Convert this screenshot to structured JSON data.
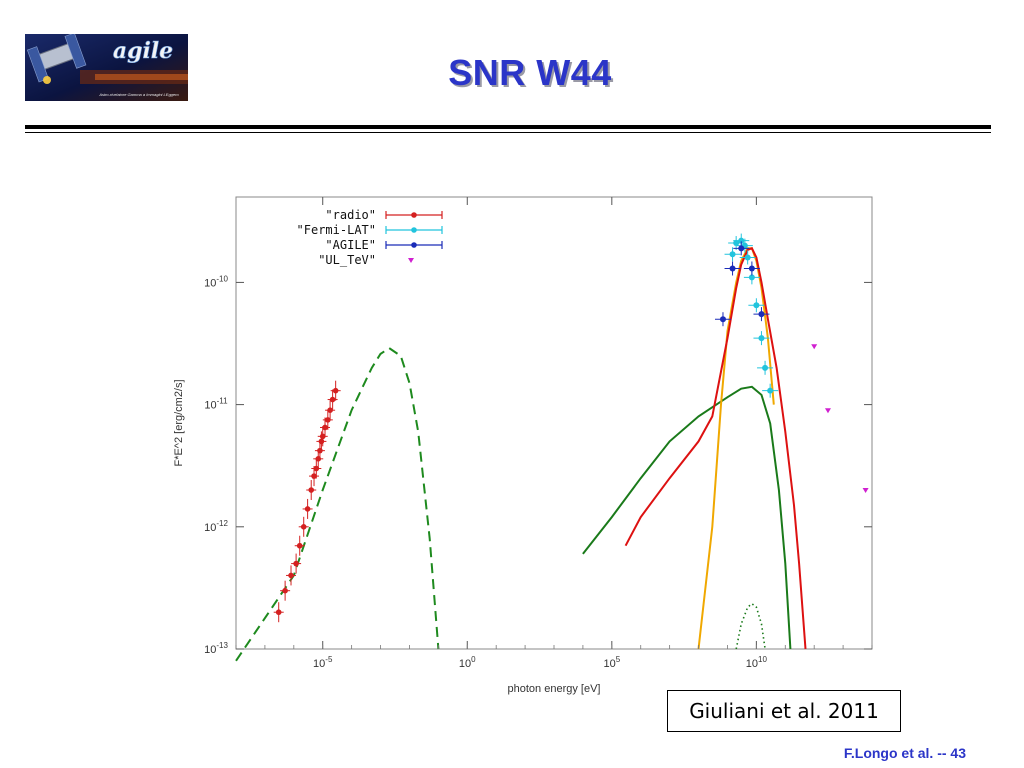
{
  "slide": {
    "title": "SNR W44",
    "footer": "F.Longo et al. -- 43",
    "citation": "Giuliani et al. 2011"
  },
  "logo": {
    "text": "agile",
    "subtitle": "Astro-rivelatore Gamma a Immagini LEggero"
  },
  "colors": {
    "title": "#2b35c8",
    "radio": "#d42020",
    "fermi": "#22c4dd",
    "agile": "#1a2cb8",
    "ul_tev": "#d020d0",
    "fit_total": "#dd1111",
    "fit_pion": "#f0a800",
    "fit_ic_green": "#1a7a1a",
    "synchrotron": "#1e8a1e"
  },
  "chart_data": {
    "type": "scatter",
    "xlabel": "photon energy [eV]",
    "ylabel": "F*E^2 [erg/cm2/s]",
    "x_scale": "log",
    "y_scale": "log",
    "xlim": [
      1e-08,
      100000000000000.0
    ],
    "ylim": [
      1e-13,
      5e-10
    ],
    "x_tick_values": [
      1e-05,
      1.0,
      100000.0,
      10000000000.0
    ],
    "x_tick_labels": [
      "10",
      "10",
      "10",
      "10"
    ],
    "x_tick_exponents": [
      "-5",
      "0",
      "5",
      "10"
    ],
    "y_tick_values": [
      1e-13,
      1e-12,
      1e-11,
      1e-10
    ],
    "y_tick_labels": [
      "10",
      "10",
      "10",
      "10"
    ],
    "y_tick_exponents": [
      "-13",
      "-12",
      "-11",
      "-10"
    ],
    "grid": false,
    "legend_position": "top-left",
    "legend": [
      {
        "label": "\"radio\"",
        "symbol": "errorbar"
      },
      {
        "label": "\"Fermi-LAT\"",
        "symbol": "errorbar"
      },
      {
        "label": "\"AGILE\"",
        "symbol": "errorbar"
      },
      {
        "label": "\"UL_TeV\"",
        "symbol": "triangle"
      }
    ],
    "series": [
      {
        "name": "\"radio\"",
        "x": [
          3e-07,
          5e-07,
          8e-07,
          1.2e-06,
          1.6e-06,
          2.2e-06,
          3e-06,
          4e-06,
          5e-06,
          6e-06,
          7e-06,
          8e-06,
          9e-06,
          1e-05,
          1.2e-05,
          1.5e-05,
          1.8e-05,
          2.2e-05,
          2.8e-05
        ],
        "y": [
          2e-13,
          3e-13,
          4e-13,
          5e-13,
          7e-13,
          1e-12,
          1.4e-12,
          2e-12,
          2.6e-12,
          3e-12,
          3.6e-12,
          4.2e-12,
          5e-12,
          5.5e-12,
          6.5e-12,
          7.5e-12,
          9e-12,
          1.1e-11,
          1.3e-11
        ]
      },
      {
        "name": "\"Fermi-LAT\"",
        "x": [
          1500000000.0,
          2000000000.0,
          3000000000.0,
          4000000000.0,
          5000000000.0,
          7000000000.0,
          10000000000.0,
          15000000000.0,
          20000000000.0,
          30000000000.0
        ],
        "y": [
          1.7e-10,
          2.1e-10,
          2.2e-10,
          2e-10,
          1.6e-10,
          1.1e-10,
          6.5e-11,
          3.5e-11,
          2e-11,
          1.3e-11
        ]
      },
      {
        "name": "\"AGILE\"",
        "x": [
          700000000.0,
          1500000000.0,
          3000000000.0,
          7000000000.0,
          15000000000.0
        ],
        "y": [
          5e-11,
          1.3e-10,
          1.9e-10,
          1.3e-10,
          5.5e-11
        ]
      },
      {
        "name": "\"UL_TeV\"",
        "x": [
          1000000000000.0,
          3000000000000.0,
          60000000000000.0
        ],
        "y": [
          3e-11,
          9e-12,
          2e-12
        ]
      }
    ],
    "curves": [
      {
        "style": "dashed",
        "x": [
          1e-08,
          1e-06,
          1e-05,
          0.0001,
          0.0005,
          0.001,
          0.002,
          0.005,
          0.01,
          0.02,
          0.05,
          0.1
        ],
        "y": [
          8e-14,
          4e-13,
          2e-12,
          9e-12,
          2e-11,
          2.6e-11,
          2.9e-11,
          2.5e-11,
          1.5e-11,
          6e-12,
          8e-13,
          1e-13
        ]
      },
      {
        "style": "solid",
        "x": [
          10000.0,
          100000.0,
          1000000.0,
          10000000.0,
          100000000.0,
          1000000000.0,
          3000000000.0,
          7000000000.0,
          15000000000.0,
          30000000000.0,
          60000000000.0,
          100000000000.0,
          150000000000.0
        ],
        "y": [
          6e-13,
          1.2e-12,
          2.5e-12,
          5e-12,
          8e-12,
          1.15e-11,
          1.35e-11,
          1.4e-11,
          1.2e-11,
          7e-12,
          2e-12,
          5e-13,
          1e-13
        ]
      },
      {
        "style": "solid",
        "x": [
          100000000.0,
          300000000.0,
          600000000.0,
          1000000000.0,
          2000000000.0,
          3000000000.0,
          5000000000.0,
          7000000000.0,
          10000000000.0,
          15000000000.0,
          25000000000.0,
          40000000000.0
        ],
        "y": [
          1e-13,
          1e-12,
          1e-11,
          4e-11,
          1e-10,
          1.5e-10,
          1.9e-10,
          1.9e-10,
          1.5e-10,
          9e-11,
          3.5e-11,
          1e-11
        ]
      },
      {
        "style": "solid",
        "x": [
          300000.0,
          1000000.0,
          10000000.0,
          100000000.0,
          300000000.0,
          1000000000.0,
          2000000000.0,
          3000000000.0,
          5000000000.0,
          7000000000.0,
          10000000000.0,
          15000000000.0,
          25000000000.0,
          50000000000.0,
          100000000000.0,
          200000000000.0,
          300000000000.0,
          500000000000.0
        ],
        "y": [
          7e-13,
          1.2e-12,
          2.5e-12,
          5e-12,
          8e-12,
          3.5e-11,
          9e-11,
          1.4e-10,
          1.85e-10,
          1.9e-10,
          1.6e-10,
          1e-10,
          5e-11,
          2e-11,
          6e-12,
          1.5e-12,
          5e-13,
          1e-13
        ]
      },
      {
        "style": "dotted",
        "x": [
          2000000000.0,
          3000000000.0,
          5000000000.0,
          7000000000.0,
          10000000000.0,
          15000000000.0,
          20000000000.0
        ],
        "y": [
          1e-13,
          1.6e-13,
          2.2e-13,
          2.35e-13,
          2.2e-13,
          1.6e-13,
          1e-13
        ]
      }
    ]
  }
}
